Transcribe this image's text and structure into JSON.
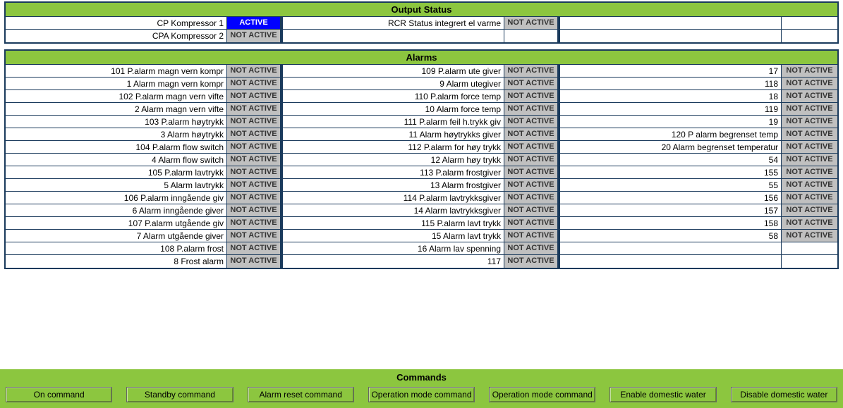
{
  "colors": {
    "header_bg": "#8cc63f",
    "border": "#1a3a5c",
    "active_bg": "#0000ff",
    "active_fg": "#ffffff",
    "notactive_bg": "#c0c0c0",
    "notactive_fg": "#333333"
  },
  "output_status": {
    "title": "Output Status",
    "rows": [
      [
        {
          "label": "CP Kompressor 1",
          "status": "ACTIVE"
        },
        {
          "label": "RCR Status integrert el varme",
          "status": "NOT ACTIVE"
        },
        {
          "label": "",
          "status": ""
        }
      ],
      [
        {
          "label": "CPA Kompressor 2",
          "status": "NOT ACTIVE"
        },
        {
          "label": "",
          "status": ""
        },
        {
          "label": "",
          "status": ""
        }
      ]
    ]
  },
  "alarms": {
    "title": "Alarms",
    "rows": [
      [
        {
          "label": "101 P.alarm magn vern kompr",
          "status": "NOT ACTIVE"
        },
        {
          "label": "109 P.alarm ute giver",
          "status": "NOT ACTIVE"
        },
        {
          "label": "17",
          "status": "NOT ACTIVE"
        }
      ],
      [
        {
          "label": "1 Alarm magn vern kompr",
          "status": "NOT ACTIVE"
        },
        {
          "label": "9 Alarm utegiver",
          "status": "NOT ACTIVE"
        },
        {
          "label": "118",
          "status": "NOT ACTIVE"
        }
      ],
      [
        {
          "label": "102 P.alarm magn vern vifte",
          "status": "NOT ACTIVE"
        },
        {
          "label": "110 P.alarm force temp",
          "status": "NOT ACTIVE"
        },
        {
          "label": "18",
          "status": "NOT ACTIVE"
        }
      ],
      [
        {
          "label": "2 Alarm magn vern vifte",
          "status": "NOT ACTIVE"
        },
        {
          "label": "10 Alarm force temp",
          "status": "NOT ACTIVE"
        },
        {
          "label": "119",
          "status": "NOT ACTIVE"
        }
      ],
      [
        {
          "label": "103 P.alarm høytrykk",
          "status": "NOT ACTIVE"
        },
        {
          "label": "111 P.alarm feil h.trykk giv",
          "status": "NOT ACTIVE"
        },
        {
          "label": "19",
          "status": "NOT ACTIVE"
        }
      ],
      [
        {
          "label": "3 Alarm høytrykk",
          "status": "NOT ACTIVE"
        },
        {
          "label": "11 Alarm høytrykks giver",
          "status": "NOT ACTIVE"
        },
        {
          "label": "120 P alarm begrenset temp",
          "status": "NOT ACTIVE"
        }
      ],
      [
        {
          "label": "104 P.alarm flow switch",
          "status": "NOT ACTIVE"
        },
        {
          "label": "112 P.alarm for høy trykk",
          "status": "NOT ACTIVE"
        },
        {
          "label": "20 Alarm begrenset temperatur",
          "status": "NOT ACTIVE"
        }
      ],
      [
        {
          "label": "4 Alarm flow switch",
          "status": "NOT ACTIVE"
        },
        {
          "label": "12 Alarm høy trykk",
          "status": "NOT ACTIVE"
        },
        {
          "label": "54",
          "status": "NOT ACTIVE"
        }
      ],
      [
        {
          "label": "105 P.alarm lavtrykk",
          "status": "NOT ACTIVE"
        },
        {
          "label": "113 P.alarm frostgiver",
          "status": "NOT ACTIVE"
        },
        {
          "label": "155",
          "status": "NOT ACTIVE"
        }
      ],
      [
        {
          "label": "5 Alarm lavtrykk",
          "status": "NOT ACTIVE"
        },
        {
          "label": "13 Alarm frostgiver",
          "status": "NOT ACTIVE"
        },
        {
          "label": "55",
          "status": "NOT ACTIVE"
        }
      ],
      [
        {
          "label": "106 P.alarm inngående giv",
          "status": "NOT ACTIVE"
        },
        {
          "label": "114 P.alarm lavtrykksgiver",
          "status": "NOT ACTIVE"
        },
        {
          "label": "156",
          "status": "NOT ACTIVE"
        }
      ],
      [
        {
          "label": "6 Alarm inngående giver",
          "status": "NOT ACTIVE"
        },
        {
          "label": "14 Alarm lavtrykksgiver",
          "status": "NOT ACTIVE"
        },
        {
          "label": "157",
          "status": "NOT ACTIVE"
        }
      ],
      [
        {
          "label": "107 P.alarm utgående giv",
          "status": "NOT ACTIVE"
        },
        {
          "label": "115 P.alarm lavt trykk",
          "status": "NOT ACTIVE"
        },
        {
          "label": "158",
          "status": "NOT ACTIVE"
        }
      ],
      [
        {
          "label": "7 Alarm utgående giver",
          "status": "NOT ACTIVE"
        },
        {
          "label": "15 Alarm lavt trykk",
          "status": "NOT ACTIVE"
        },
        {
          "label": "58",
          "status": "NOT ACTIVE"
        }
      ],
      [
        {
          "label": "108 P.alarm frost",
          "status": "NOT ACTIVE"
        },
        {
          "label": "16 Alarm lav spenning",
          "status": "NOT ACTIVE"
        },
        {
          "label": "",
          "status": ""
        }
      ],
      [
        {
          "label": "8 Frost alarm",
          "status": "NOT ACTIVE"
        },
        {
          "label": "117",
          "status": "NOT ACTIVE"
        },
        {
          "label": "",
          "status": ""
        }
      ]
    ]
  },
  "commands": {
    "title": "Commands",
    "buttons": [
      "On command",
      "Standby command",
      "Alarm reset command",
      "Operation mode command",
      "Operation mode command",
      "Enable domestic water",
      "Disable domestic water"
    ]
  }
}
